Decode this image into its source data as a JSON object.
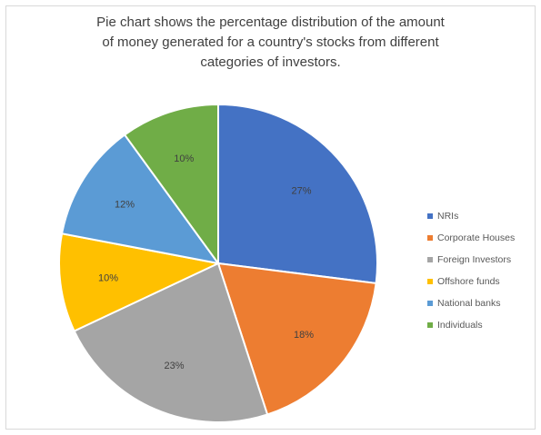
{
  "title_lines": [
    "Pie chart shows the percentage distribution of the  amount",
    "of money generated for a country's stocks from different",
    "categories of investors."
  ],
  "chart_data": {
    "type": "pie",
    "title": "Pie chart shows the percentage distribution of the  amount of money generated for a country's stocks from different categories of investors.",
    "unit": "%",
    "start_angle_deg": 0,
    "direction": "clockwise",
    "legend_position": "right",
    "slices": [
      {
        "label": "NRIs",
        "value": 27,
        "value_label": "27%",
        "color": "#4472C4"
      },
      {
        "label": "Corporate Houses",
        "value": 18,
        "value_label": "18%",
        "color": "#ED7D31"
      },
      {
        "label": "Foreign Investors",
        "value": 23,
        "value_label": "23%",
        "color": "#A5A5A5"
      },
      {
        "label": "Offshore funds",
        "value": 10,
        "value_label": "10%",
        "color": "#FFC000"
      },
      {
        "label": "National banks",
        "value": 12,
        "value_label": "12%",
        "color": "#5B9BD5"
      },
      {
        "label": "Individuals",
        "value": 10,
        "value_label": "10%",
        "color": "#70AD47"
      }
    ]
  }
}
